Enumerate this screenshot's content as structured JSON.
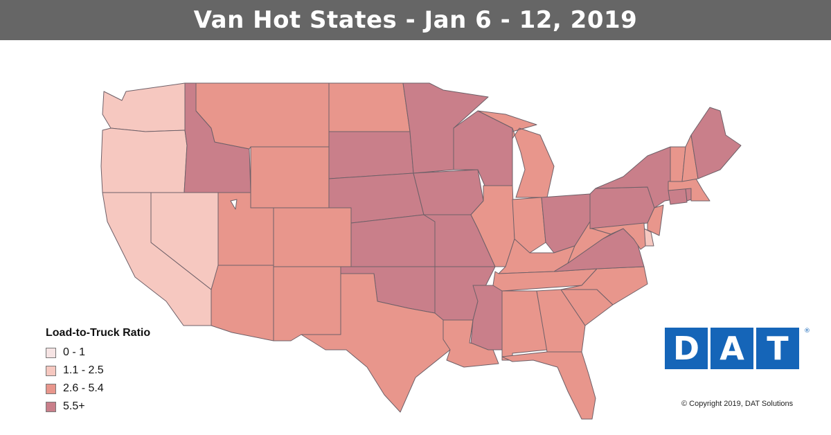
{
  "title": "Van Hot States - Jan 6 - 12, 2019",
  "legend": {
    "title": "Load-to-Truck Ratio",
    "items": [
      {
        "label": "0 - 1",
        "color": "#f6e4e4"
      },
      {
        "label": "1.1 - 2.5",
        "color": "#f6c8c0"
      },
      {
        "label": "2.6 - 5.4",
        "color": "#e8968c"
      },
      {
        "label": "5.5+",
        "color": "#c97f8a"
      }
    ]
  },
  "logo": {
    "letters": [
      "D",
      "A",
      "T"
    ],
    "registered": "®",
    "color": "#1565b8"
  },
  "copyright": "© Copyright 2019, DAT Solutions",
  "state_bins": {
    "WA": 1,
    "OR": 1,
    "CA": 1,
    "NV": 1,
    "ID": 3,
    "MT": 2,
    "WY": 2,
    "UT": 2,
    "CO": 2,
    "AZ": 2,
    "NM": 2,
    "ND": 2,
    "SD": 3,
    "NE": 3,
    "KS": 3,
    "OK": 3,
    "TX": 2,
    "MN": 3,
    "IA": 3,
    "MO": 3,
    "AR": 3,
    "LA": 2,
    "WI": 3,
    "IL": 2,
    "MS": 3,
    "MI": 2,
    "IN": 2,
    "OH": 3,
    "KY": 2,
    "TN": 2,
    "AL": 2,
    "GA": 2,
    "FL": 2,
    "SC": 2,
    "NC": 2,
    "VA": 3,
    "WV": 2,
    "PA": 3,
    "NY": 3,
    "NJ": 2,
    "DE": 1,
    "MD": 2,
    "CT": 3,
    "RI": 3,
    "MA": 2,
    "VT": 2,
    "NH": 2,
    "ME": 3
  }
}
